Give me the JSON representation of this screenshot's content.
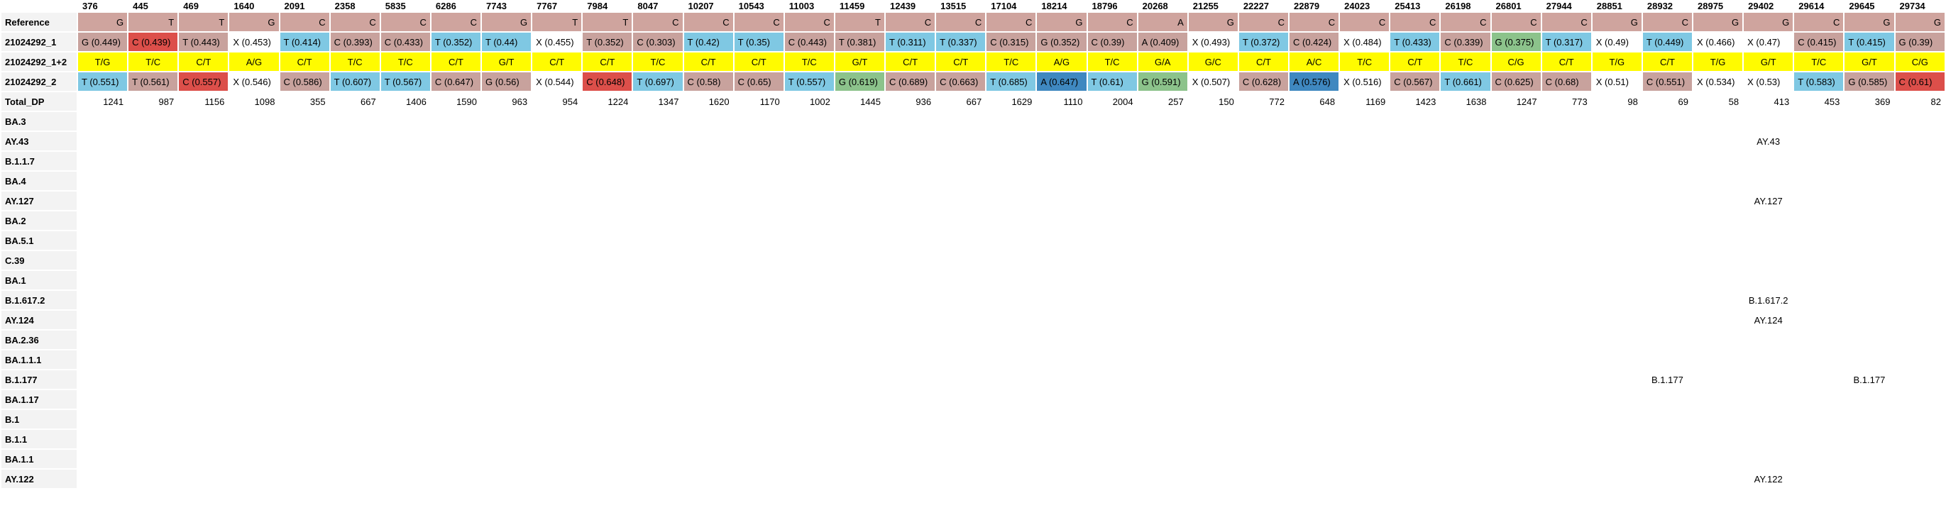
{
  "positions": [
    "376",
    "445",
    "469",
    "1640",
    "2091",
    "2358",
    "5835",
    "6286",
    "7743",
    "7767",
    "7984",
    "8047",
    "10207",
    "10543",
    "11003",
    "11459",
    "12439",
    "13515",
    "17104",
    "18214",
    "18796",
    "20268",
    "21255",
    "22227",
    "22879",
    "24023",
    "25413",
    "26198",
    "26801",
    "27944",
    "28851",
    "28932",
    "28975",
    "29402",
    "29614",
    "29645",
    "29734"
  ],
  "reference": {
    "label": "Reference",
    "values": [
      "G",
      "T",
      "T",
      "G",
      "C",
      "C",
      "C",
      "C",
      "G",
      "T",
      "T",
      "C",
      "C",
      "C",
      "C",
      "T",
      "C",
      "C",
      "C",
      "G",
      "C",
      "A",
      "G",
      "C",
      "C",
      "C",
      "C",
      "C",
      "C",
      "C",
      "G",
      "C",
      "G",
      "G",
      "C",
      "G",
      "G"
    ]
  },
  "sample1": {
    "label": "21024292_1",
    "values": [
      "G (0.449)",
      "C (0.439)",
      "T (0.443)",
      "X (0.453)",
      "T (0.414)",
      "C (0.393)",
      "C (0.433)",
      "T (0.352)",
      "T (0.44)",
      "X (0.455)",
      "T (0.352)",
      "C (0.303)",
      "T (0.42)",
      "T (0.35)",
      "C (0.443)",
      "T (0.381)",
      "T (0.311)",
      "T (0.337)",
      "C (0.315)",
      "G (0.352)",
      "C (0.39)",
      "A (0.409)",
      "X (0.493)",
      "T (0.372)",
      "C (0.424)",
      "X (0.484)",
      "T (0.433)",
      "C (0.339)",
      "G (0.375)",
      "T (0.317)",
      "X (0.49)",
      "T (0.449)",
      "X (0.466)",
      "X (0.47)",
      "C (0.415)",
      "T (0.415)",
      "G (0.39)"
    ],
    "colors": [
      "gr",
      "cr",
      "gr",
      "w",
      "t",
      "gr",
      "gr",
      "t",
      "t",
      "w",
      "gr",
      "gr",
      "t",
      "t",
      "gr",
      "gr",
      "t",
      "t",
      "gr",
      "gr",
      "gr",
      "gr",
      "w",
      "t",
      "gr",
      "w",
      "t",
      "gr",
      "g",
      "t",
      "w",
      "t",
      "w",
      "w",
      "gr",
      "t",
      "gr"
    ]
  },
  "alt": {
    "label": "21024292_1+2",
    "values": [
      "T/G",
      "T/C",
      "C/T",
      "A/G",
      "C/T",
      "T/C",
      "T/C",
      "C/T",
      "G/T",
      "C/T",
      "C/T",
      "T/C",
      "C/T",
      "C/T",
      "T/C",
      "G/T",
      "C/T",
      "C/T",
      "T/C",
      "A/G",
      "T/C",
      "G/A",
      "G/C",
      "C/T",
      "A/C",
      "T/C",
      "C/T",
      "T/C",
      "C/G",
      "C/T",
      "T/G",
      "C/T",
      "T/G",
      "G/T",
      "T/C",
      "G/T",
      "C/G"
    ]
  },
  "sample2": {
    "label": "21024292_2",
    "values": [
      "T (0.551)",
      "T (0.561)",
      "C (0.557)",
      "X (0.546)",
      "C (0.586)",
      "T (0.607)",
      "T (0.567)",
      "C (0.647)",
      "G (0.56)",
      "X (0.544)",
      "C (0.648)",
      "T (0.697)",
      "C (0.58)",
      "C (0.65)",
      "T (0.557)",
      "G (0.619)",
      "C (0.689)",
      "C (0.663)",
      "T (0.685)",
      "A (0.647)",
      "T (0.61)",
      "G (0.591)",
      "X (0.507)",
      "C (0.628)",
      "A (0.576)",
      "X (0.516)",
      "C (0.567)",
      "T (0.661)",
      "C (0.625)",
      "C (0.68)",
      "X (0.51)",
      "C (0.551)",
      "X (0.534)",
      "X (0.53)",
      "T (0.583)",
      "G (0.585)",
      "C (0.61)"
    ],
    "colors": [
      "t",
      "gr",
      "cr",
      "w",
      "gr",
      "t",
      "t",
      "gr",
      "gr",
      "w",
      "cr",
      "t",
      "gr",
      "gr",
      "t",
      "g",
      "gr",
      "gr",
      "t",
      "tb",
      "t",
      "g",
      "w",
      "gr",
      "tb",
      "w",
      "gr",
      "t",
      "gr",
      "gr",
      "w",
      "gr",
      "w",
      "w",
      "t",
      "gr",
      "cr"
    ]
  },
  "total_dp": {
    "label": "Total_DP",
    "values": [
      "1241",
      "987",
      "1156",
      "1098",
      "355",
      "667",
      "1406",
      "1590",
      "963",
      "954",
      "1224",
      "1347",
      "1620",
      "1170",
      "1002",
      "1445",
      "936",
      "667",
      "1629",
      "1110",
      "2004",
      "257",
      "150",
      "772",
      "648",
      "1169",
      "1423",
      "1638",
      "1247",
      "773",
      "98",
      "69",
      "58",
      "413",
      "453",
      "369",
      "82"
    ]
  },
  "lineages": [
    {
      "label": "BA.3",
      "marks": {}
    },
    {
      "label": "AY.43",
      "marks": {
        "33": "AY.43"
      }
    },
    {
      "label": "B.1.1.7",
      "marks": {}
    },
    {
      "label": "BA.4",
      "marks": {}
    },
    {
      "label": "AY.127",
      "marks": {
        "33": "AY.127"
      }
    },
    {
      "label": "BA.2",
      "marks": {}
    },
    {
      "label": "BA.5.1",
      "marks": {}
    },
    {
      "label": "C.39",
      "marks": {}
    },
    {
      "label": "BA.1",
      "marks": {}
    },
    {
      "label": "B.1.617.2",
      "marks": {
        "33": "B.1.617.2"
      }
    },
    {
      "label": "AY.124",
      "marks": {
        "33": "AY.124"
      }
    },
    {
      "label": "BA.2.36",
      "marks": {}
    },
    {
      "label": "BA.1.1.1",
      "marks": {}
    },
    {
      "label": "B.1.177",
      "marks": {
        "31": "B.1.177",
        "35": "B.1.177"
      }
    },
    {
      "label": "BA.1.17",
      "marks": {}
    },
    {
      "label": "B.1",
      "marks": {}
    },
    {
      "label": "B.1.1",
      "marks": {}
    },
    {
      "label": "BA.1.1",
      "marks": {}
    },
    {
      "label": "AY.122",
      "marks": {
        "33": "AY.122"
      }
    }
  ]
}
